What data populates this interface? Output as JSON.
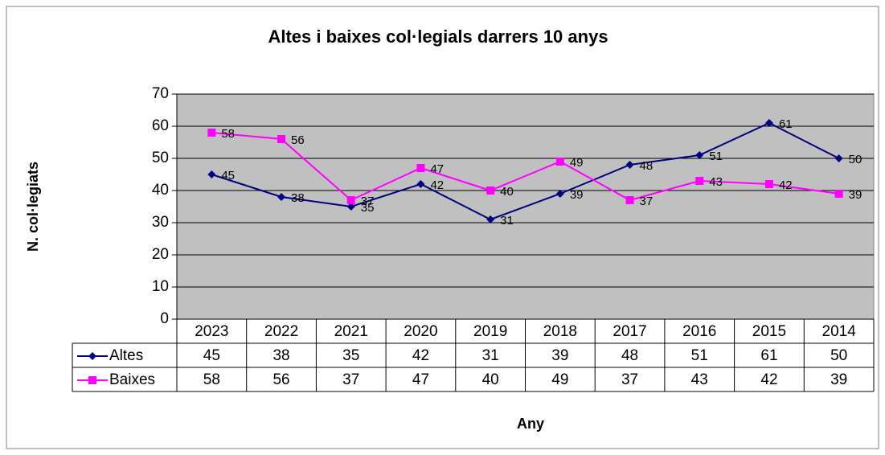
{
  "chart_data": {
    "type": "line",
    "title": "Altes i baixes col·legials darrers 10 anys",
    "x_label": "Any",
    "y_label": "N. col·legiats",
    "categories": [
      "2023",
      "2022",
      "2021",
      "2020",
      "2019",
      "2018",
      "2017",
      "2016",
      "2015",
      "2014"
    ],
    "series": [
      {
        "name": "Altes",
        "color": "#000080",
        "marker": "diamond",
        "values": [
          45,
          38,
          35,
          42,
          31,
          39,
          48,
          51,
          61,
          50
        ]
      },
      {
        "name": "Baixes",
        "color": "#ff00ff",
        "marker": "square",
        "values": [
          58,
          56,
          37,
          47,
          40,
          49,
          37,
          43,
          42,
          39
        ]
      }
    ],
    "ylim": [
      0,
      70
    ],
    "yticks": [
      0,
      10,
      20,
      30,
      40,
      50,
      60,
      70
    ],
    "grid": true,
    "plot_background": "#c0c0c0",
    "data_table": true
  }
}
